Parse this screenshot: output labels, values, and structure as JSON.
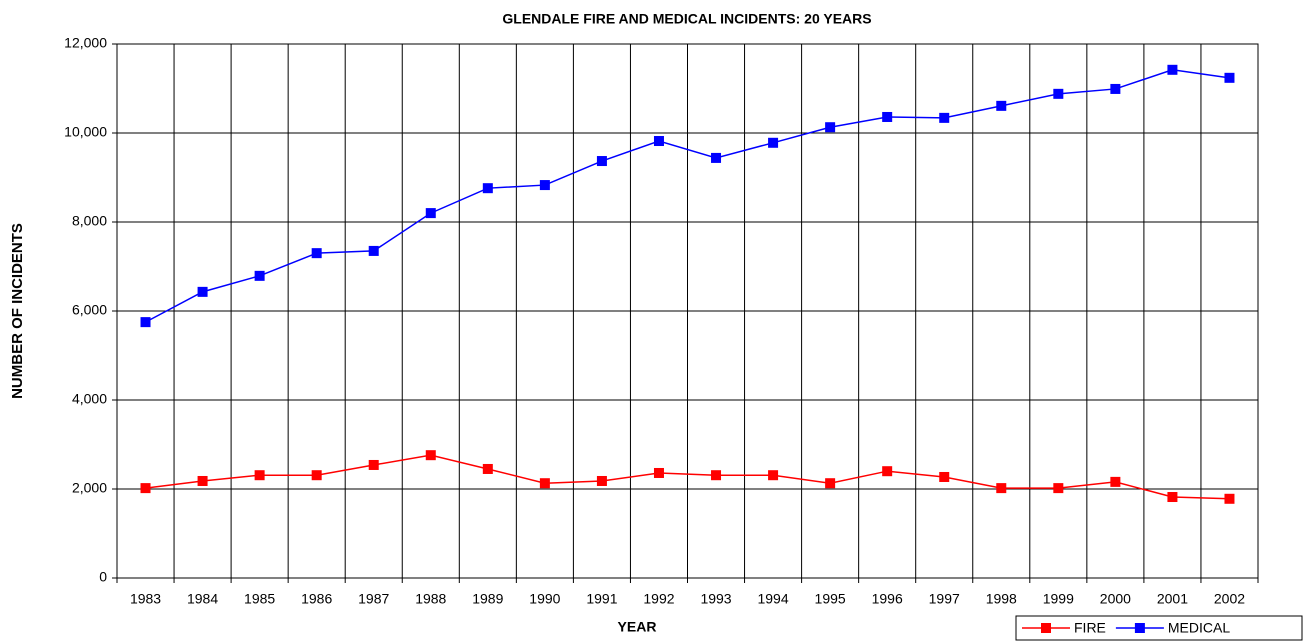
{
  "chart_data": {
    "type": "line",
    "title": "GLENDALE FIRE AND MEDICAL INCIDENTS: 20 YEARS",
    "x_label": "YEAR",
    "y_label": "NUMBER OF INCIDENTS",
    "categories": [
      "1983",
      "1984",
      "1985",
      "1986",
      "1987",
      "1988",
      "1989",
      "1990",
      "1991",
      "1992",
      "1993",
      "1994",
      "1995",
      "1996",
      "1997",
      "1998",
      "1999",
      "2000",
      "2001",
      "2002"
    ],
    "series": [
      {
        "name": "FIRE",
        "color": "#ff0000",
        "values": [
          2020,
          2180,
          2310,
          2310,
          2540,
          2760,
          2450,
          2130,
          2180,
          2360,
          2310,
          2310,
          2130,
          2400,
          2270,
          2020,
          2020,
          2160,
          1820,
          1780
        ]
      },
      {
        "name": "MEDICAL",
        "color": "#0000ff",
        "values": [
          5750,
          6430,
          6790,
          7300,
          7350,
          8200,
          8760,
          8830,
          9370,
          9820,
          9440,
          9780,
          10130,
          10360,
          10340,
          10610,
          10880,
          10990,
          11420,
          11240
        ]
      }
    ],
    "ylim": [
      0,
      12000
    ],
    "yticks": [
      0,
      {
        "value": 2000,
        "label": "2,000"
      },
      {
        "value": 4000,
        "label": "4,000"
      },
      {
        "value": 6000,
        "label": "6,000"
      },
      {
        "value": 8000,
        "label": "8,000"
      },
      {
        "value": 10000,
        "label": "10,000"
      },
      {
        "value": 12000,
        "label": "12,000"
      }
    ],
    "grid": true,
    "legend": "bottom-right"
  }
}
